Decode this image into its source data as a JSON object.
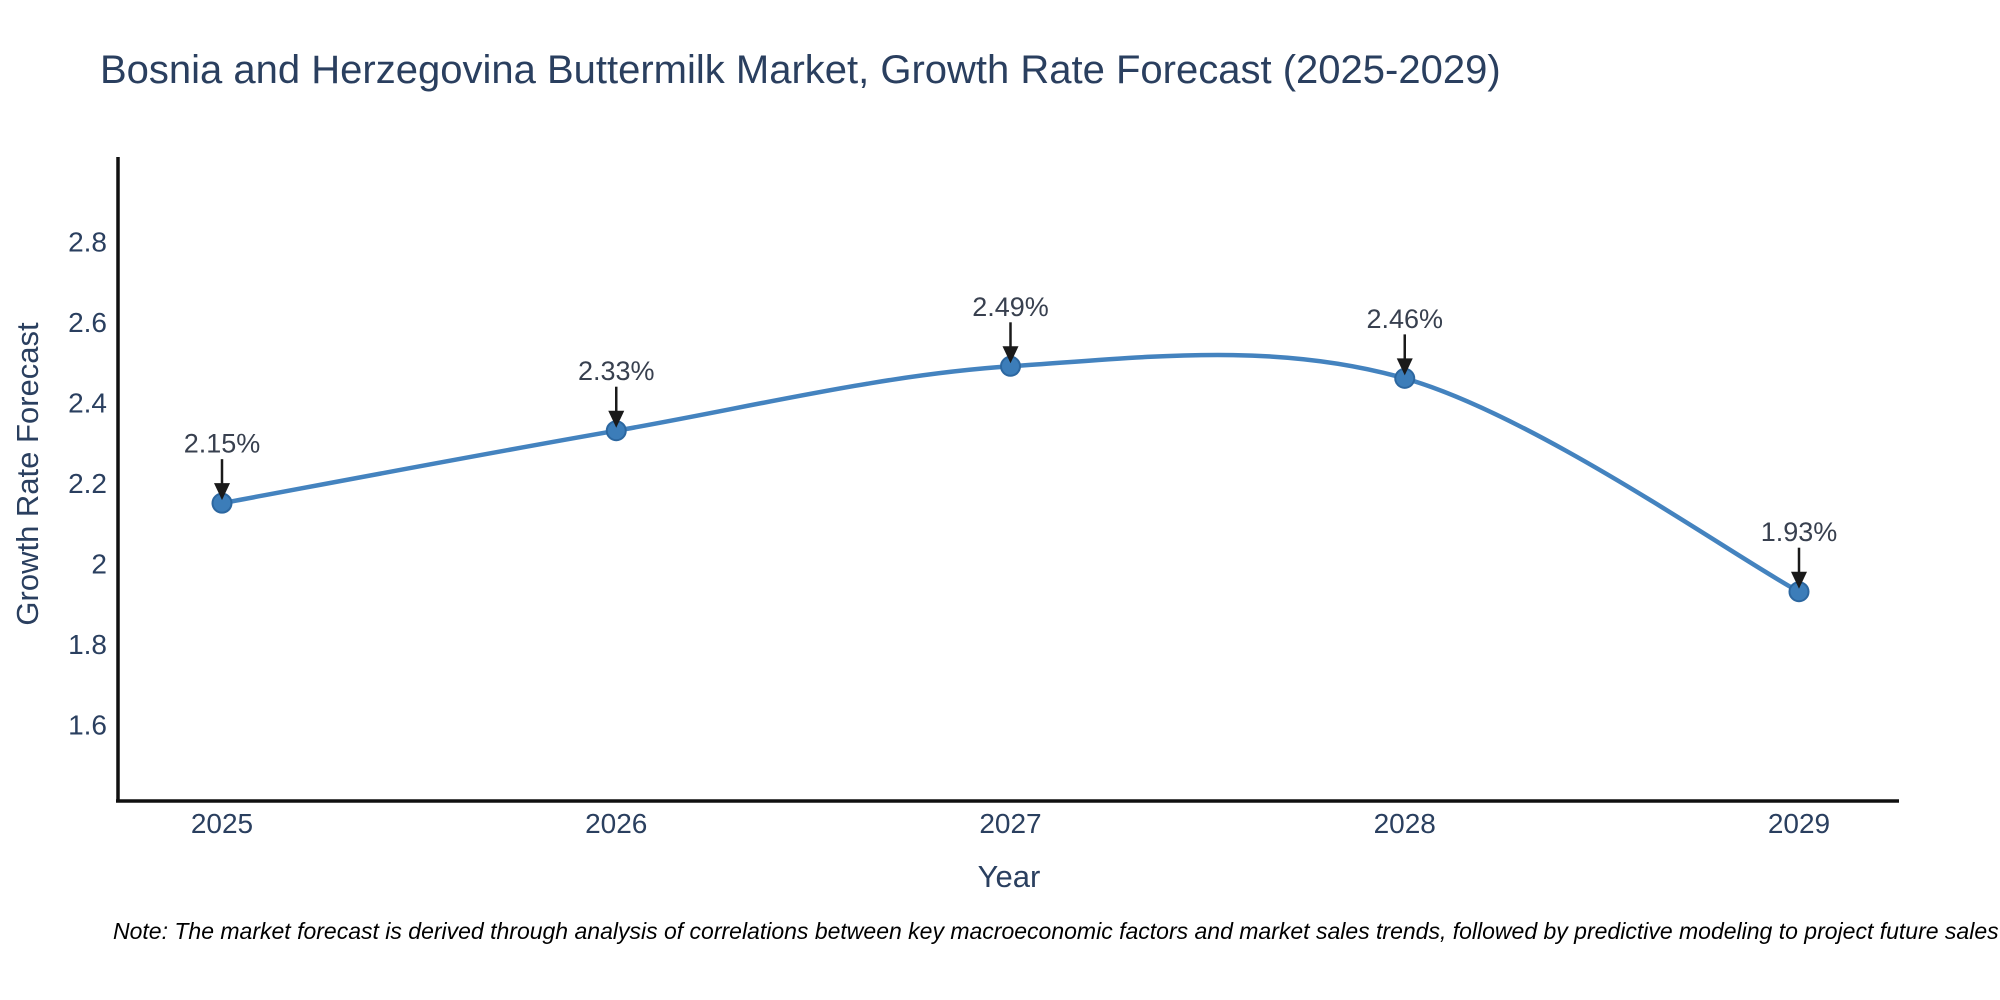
{
  "chart_data": {
    "type": "line",
    "title": "Bosnia and Herzegovina Buttermilk Market, Growth Rate Forecast (2025-2029)",
    "xlabel": "Year",
    "ylabel": "Growth Rate Forecast",
    "categories": [
      "2025",
      "2026",
      "2027",
      "2028",
      "2029"
    ],
    "series": [
      {
        "name": "Growth Rate Forecast",
        "values": [
          2.15,
          2.33,
          2.49,
          2.46,
          1.93
        ]
      }
    ],
    "point_labels": [
      "2.15%",
      "2.33%",
      "2.49%",
      "2.46%",
      "1.93%"
    ],
    "y_tick_labels": [
      "1.6",
      "1.8",
      "2",
      "2.2",
      "2.4",
      "2.6",
      "2.8"
    ],
    "y_tick_values": [
      1.6,
      1.8,
      2.0,
      2.2,
      2.4,
      2.6,
      2.8
    ],
    "ylim": [
      1.41,
      3.01
    ],
    "grid": false,
    "legend": "none",
    "line_shape": "spline",
    "annotation_arrows": "down-arrow-to-point",
    "colors": {
      "line": "#4483bf",
      "marker": "#3c7db9",
      "marker_edge": "#2c67a0",
      "axis": "#101010",
      "text": "#2a3f5f",
      "annotation_text": "#38404f",
      "arrow": "#1a1a1a",
      "note": "#000000",
      "background": "#ffffff"
    }
  },
  "note": "Note: The market forecast is derived through analysis of correlations between key macroeconomic factors and market sales trends, followed by predictive modeling to project future sales"
}
